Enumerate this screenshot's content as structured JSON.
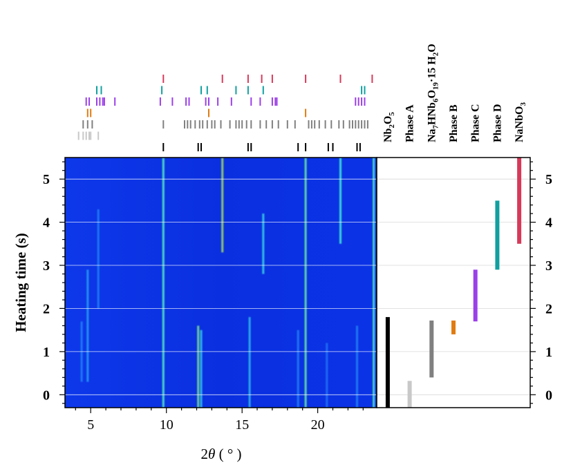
{
  "chart_data": [
    {
      "type": "heatmap",
      "description_units": "x: 2theta degrees, y: heating time seconds",
      "xlabel_math": "θ",
      "xlabel_prefix": "2",
      "xlabel_unit": " ( ° )",
      "ylabel": "Heating time (s)",
      "xlim": [
        3.3,
        23.9
      ],
      "ylim": [
        -0.3,
        5.5
      ],
      "xticks": [
        5,
        10,
        15,
        20
      ],
      "yticks": [
        0,
        1,
        2,
        3,
        4,
        5
      ],
      "colormap": [
        "#0a2fe6",
        "#1a62f5",
        "#2aa8f0",
        "#3fe8d8",
        "#9dd860"
      ],
      "background": "#0b30e4",
      "streaks": [
        {
          "x": 9.8,
          "y0": -0.3,
          "y1": 5.5,
          "level": 0.8
        },
        {
          "x": 12.1,
          "y0": -0.3,
          "y1": 1.6,
          "level": 0.9
        },
        {
          "x": 12.3,
          "y0": -0.3,
          "y1": 1.5,
          "level": 0.6
        },
        {
          "x": 13.7,
          "y0": 3.3,
          "y1": 5.5,
          "level": 1.0
        },
        {
          "x": 15.5,
          "y0": -0.3,
          "y1": 1.8,
          "level": 0.55
        },
        {
          "x": 16.4,
          "y0": 2.8,
          "y1": 4.2,
          "level": 0.65
        },
        {
          "x": 19.2,
          "y0": -0.3,
          "y1": 5.5,
          "level": 0.85
        },
        {
          "x": 21.5,
          "y0": 3.5,
          "y1": 5.5,
          "level": 0.75
        },
        {
          "x": 23.7,
          "y0": -0.3,
          "y1": 5.5,
          "level": 0.8
        },
        {
          "x": 4.8,
          "y0": 0.3,
          "y1": 2.9,
          "level": 0.45
        },
        {
          "x": 4.4,
          "y0": 0.3,
          "y1": 1.7,
          "level": 0.35
        },
        {
          "x": 5.5,
          "y0": 2.0,
          "y1": 4.3,
          "level": 0.35
        },
        {
          "x": 18.7,
          "y0": -0.3,
          "y1": 1.5,
          "level": 0.35
        },
        {
          "x": 20.6,
          "y0": -0.3,
          "y1": 1.2,
          "level": 0.3
        },
        {
          "x": 22.6,
          "y0": -0.3,
          "y1": 1.6,
          "level": 0.35
        }
      ],
      "gridlines_y": [
        0,
        1,
        2,
        3,
        4,
        5
      ]
    },
    {
      "type": "bar",
      "orientation": "vertical-ranges",
      "ylim": [
        -0.3,
        5.5
      ],
      "yticks": [
        0,
        1,
        2,
        3,
        4,
        5
      ],
      "phases": [
        {
          "name": "Nb2O5",
          "label_html": "Nb<tspan baseline-shift='sub' font-size='11'>2</tspan>O<tspan baseline-shift='sub' font-size='11'>5</tspan>",
          "label": "Nb2O5",
          "start": -0.3,
          "end": 1.8,
          "color": "#000000"
        },
        {
          "name": "Phase A",
          "label": "Phase A",
          "start": -0.3,
          "end": 0.32,
          "color": "#c8c8c8"
        },
        {
          "name": "Na7HNb6O19·15 H2O",
          "label": "Na7HNb6O19·15 H2O",
          "start": 0.4,
          "end": 1.72,
          "color": "#808080"
        },
        {
          "name": "Phase B",
          "label": "Phase B",
          "start": 1.4,
          "end": 1.72,
          "color": "#e07b12"
        },
        {
          "name": "Phase C",
          "label": "Phase C",
          "start": 1.7,
          "end": 2.9,
          "color": "#9b3fe8"
        },
        {
          "name": "Phase D",
          "label": "Phase D",
          "start": 2.9,
          "end": 4.5,
          "color": "#10a0a0"
        },
        {
          "name": "NaNbO3",
          "label": "NaNbO3",
          "start": 3.5,
          "end": 5.5,
          "color": "#d63a5a"
        }
      ]
    },
    {
      "type": "scatter",
      "role": "reflection-tick-rows",
      "rows": [
        {
          "phase": "NaNbO3",
          "color": "#d63a5a",
          "x": [
            9.8,
            13.7,
            15.4,
            16.3,
            17.0,
            19.2,
            21.5,
            23.6
          ]
        },
        {
          "phase": "Phase D",
          "color": "#10a0a0",
          "x": [
            5.4,
            5.7,
            9.7,
            12.3,
            12.7,
            14.6,
            15.4,
            16.4,
            22.9,
            23.1
          ]
        },
        {
          "phase": "Phase C",
          "color": "#9b3fe8",
          "x": [
            4.7,
            4.9,
            5.4,
            5.6,
            5.8,
            5.9,
            6.6,
            9.6,
            10.4,
            11.3,
            11.5,
            12.6,
            12.8,
            13.4,
            14.3,
            15.6,
            16.2,
            17.0,
            17.2,
            17.3,
            22.5,
            22.7,
            22.9,
            23.1
          ]
        },
        {
          "phase": "Phase B",
          "color": "#e07b12",
          "x": [
            4.8,
            5.0,
            12.8,
            19.2
          ]
        },
        {
          "phase": "Na7HNb6O19·15 H2O",
          "color": "#808080",
          "x": [
            4.5,
            4.8,
            5.1,
            9.8,
            11.2,
            11.4,
            11.6,
            11.9,
            12.2,
            12.4,
            12.7,
            13.0,
            13.2,
            13.6,
            14.2,
            14.6,
            14.8,
            15.0,
            15.3,
            15.6,
            16.2,
            16.6,
            17.0,
            17.4,
            18.0,
            18.5,
            19.4,
            19.6,
            19.8,
            20.1,
            20.5,
            20.9,
            21.4,
            21.7,
            22.1,
            22.3,
            22.5,
            22.7,
            22.9,
            23.1,
            23.3
          ]
        },
        {
          "phase": "Phase A",
          "color": "#c8c8c8",
          "x": [
            4.2,
            4.5,
            4.7,
            4.9,
            5.0,
            5.5
          ]
        },
        {
          "phase": "Nb2O5",
          "color": "#000000",
          "x": [
            9.8,
            12.1,
            12.3,
            15.4,
            15.6,
            18.7,
            19.2,
            20.7,
            21.0,
            22.6,
            22.8
          ]
        }
      ]
    }
  ]
}
